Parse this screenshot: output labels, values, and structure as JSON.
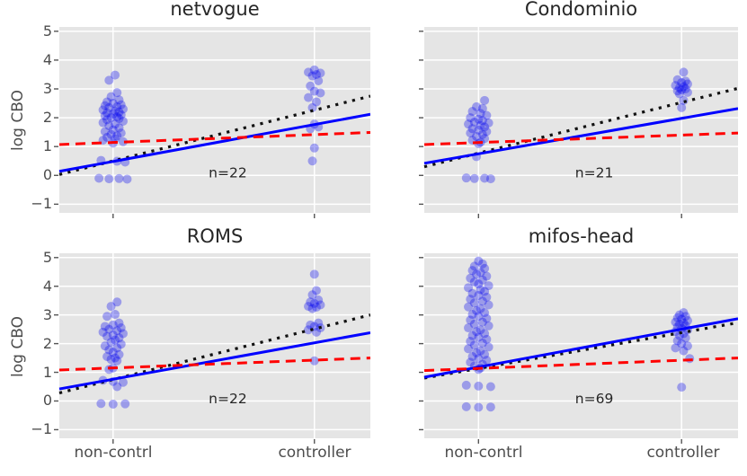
{
  "figure": {
    "ylabel": "log CBO",
    "categories": [
      "non-contrl",
      "controller"
    ],
    "ytick_values": [
      5,
      4,
      3,
      2,
      1,
      0,
      -1
    ],
    "ytick_labels": [
      "5",
      "4",
      "3",
      "2",
      "1",
      "0",
      "−1"
    ],
    "ylim": [
      -1.3,
      5.15
    ],
    "xlim": [
      -0.267,
      1.278
    ],
    "grid": "on",
    "colors": {
      "panel_bg": "#e5e5e5",
      "grid": "#ffffff",
      "scatter": "#0000ee",
      "solid_blue": "#0000ff",
      "dashed_red": "#ff0000",
      "dotted_black": "#111111",
      "tick": "#555555",
      "text_gray": "#4d4d4d",
      "title": "#262626"
    }
  },
  "chart_data": [
    {
      "type": "scatter",
      "title": "netvogue",
      "n_label": "n=22",
      "xlabel": "",
      "ylabel": "log CBO",
      "categories": [
        "non-contrl",
        "controller"
      ],
      "lines": {
        "solid_blue": {
          "y_at_xmin": 0.14,
          "y_at_xmax": 2.12
        },
        "dashed_red": {
          "y_at_xmin": 1.07,
          "y_at_xmax": 1.49
        },
        "dotted_black": {
          "y_at_xmin": 0.03,
          "y_at_xmax": 2.75
        }
      },
      "points_non_contrl": [
        [
          0.01,
          3.48
        ],
        [
          -0.02,
          3.3
        ],
        [
          0.02,
          2.87
        ],
        [
          -0.01,
          2.73
        ],
        [
          0.03,
          2.62
        ],
        [
          -0.03,
          2.55
        ],
        [
          0.0,
          2.5
        ],
        [
          0.04,
          2.45
        ],
        [
          -0.04,
          2.42
        ],
        [
          0.02,
          2.38
        ],
        [
          -0.02,
          2.35
        ],
        [
          0.05,
          2.3
        ],
        [
          -0.05,
          2.27
        ],
        [
          0.01,
          2.23
        ],
        [
          0.03,
          2.2
        ],
        [
          -0.03,
          2.17
        ],
        [
          0.0,
          2.13
        ],
        [
          0.04,
          2.1
        ],
        [
          -0.04,
          2.07
        ],
        [
          0.02,
          2.03
        ],
        [
          -0.01,
          2.0
        ],
        [
          0.03,
          1.97
        ],
        [
          -0.03,
          1.93
        ],
        [
          0.05,
          1.88
        ],
        [
          -0.05,
          1.83
        ],
        [
          0.01,
          1.78
        ],
        [
          -0.02,
          1.72
        ],
        [
          0.03,
          1.65
        ],
        [
          0.0,
          1.58
        ],
        [
          -0.04,
          1.52
        ],
        [
          0.04,
          1.47
        ],
        [
          -0.01,
          1.42
        ],
        [
          0.02,
          1.37
        ],
        [
          -0.03,
          1.32
        ],
        [
          0.01,
          1.27
        ],
        [
          -0.05,
          1.22
        ],
        [
          0.05,
          1.17
        ],
        [
          0.0,
          1.12
        ],
        [
          -0.06,
          0.52
        ],
        [
          0.02,
          0.49
        ],
        [
          0.06,
          0.46
        ],
        [
          -0.07,
          -0.1
        ],
        [
          -0.02,
          -0.12
        ],
        [
          0.03,
          -0.11
        ],
        [
          0.07,
          -0.13
        ]
      ],
      "points_controller": [
        [
          0.0,
          3.66
        ],
        [
          -0.03,
          3.58
        ],
        [
          0.03,
          3.55
        ],
        [
          0.01,
          3.5
        ],
        [
          -0.01,
          3.45
        ],
        [
          0.02,
          3.28
        ],
        [
          -0.02,
          3.1
        ],
        [
          0.0,
          2.92
        ],
        [
          0.03,
          2.86
        ],
        [
          -0.03,
          2.7
        ],
        [
          0.01,
          2.55
        ],
        [
          -0.01,
          2.35
        ],
        [
          0.0,
          1.78
        ],
        [
          0.02,
          1.68
        ],
        [
          -0.02,
          1.62
        ],
        [
          0.0,
          0.95
        ],
        [
          -0.01,
          0.5
        ]
      ]
    },
    {
      "type": "scatter",
      "title": "Condominio",
      "n_label": "n=21",
      "xlabel": "",
      "ylabel": "log CBO",
      "categories": [
        "non-contrl",
        "controller"
      ],
      "lines": {
        "solid_blue": {
          "y_at_xmin": 0.42,
          "y_at_xmax": 2.32
        },
        "dashed_red": {
          "y_at_xmin": 1.07,
          "y_at_xmax": 1.47
        },
        "dotted_black": {
          "y_at_xmin": 0.3,
          "y_at_xmax": 3.02
        }
      },
      "points_non_contrl": [
        [
          0.03,
          2.6
        ],
        [
          -0.01,
          2.38
        ],
        [
          0.02,
          2.32
        ],
        [
          -0.03,
          2.22
        ],
        [
          0.01,
          2.15
        ],
        [
          0.04,
          2.08
        ],
        [
          -0.04,
          2.0
        ],
        [
          0.0,
          1.95
        ],
        [
          0.02,
          1.9
        ],
        [
          -0.02,
          1.85
        ],
        [
          0.05,
          1.82
        ],
        [
          -0.05,
          1.78
        ],
        [
          0.01,
          1.73
        ],
        [
          0.03,
          1.68
        ],
        [
          -0.03,
          1.62
        ],
        [
          0.0,
          1.57
        ],
        [
          0.04,
          1.52
        ],
        [
          -0.04,
          1.47
        ],
        [
          0.02,
          1.42
        ],
        [
          -0.01,
          1.35
        ],
        [
          0.03,
          1.28
        ],
        [
          -0.03,
          1.22
        ],
        [
          0.01,
          1.15
        ],
        [
          0.0,
          1.1
        ],
        [
          -0.01,
          0.65
        ],
        [
          -0.06,
          -0.09
        ],
        [
          -0.02,
          -0.11
        ],
        [
          0.03,
          -0.1
        ],
        [
          0.06,
          -0.12
        ]
      ],
      "points_controller": [
        [
          0.01,
          3.58
        ],
        [
          -0.02,
          3.32
        ],
        [
          0.02,
          3.27
        ],
        [
          0.0,
          3.22
        ],
        [
          0.03,
          3.17
        ],
        [
          -0.03,
          3.12
        ],
        [
          0.01,
          3.08
        ],
        [
          -0.01,
          3.04
        ],
        [
          0.02,
          3.0
        ],
        [
          0.0,
          2.97
        ],
        [
          -0.02,
          2.93
        ],
        [
          0.03,
          2.88
        ],
        [
          -0.01,
          2.83
        ],
        [
          0.01,
          2.6
        ],
        [
          0.0,
          2.35
        ]
      ]
    },
    {
      "type": "scatter",
      "title": "ROMS",
      "n_label": "n=22",
      "xlabel": "",
      "ylabel": "log CBO",
      "categories": [
        "non-contrl",
        "controller"
      ],
      "lines": {
        "solid_blue": {
          "y_at_xmin": 0.42,
          "y_at_xmax": 2.38
        },
        "dashed_red": {
          "y_at_xmin": 1.08,
          "y_at_xmax": 1.5
        },
        "dotted_black": {
          "y_at_xmin": 0.28,
          "y_at_xmax": 3.0
        }
      },
      "points_non_contrl": [
        [
          0.02,
          3.45
        ],
        [
          -0.01,
          3.3
        ],
        [
          0.01,
          3.02
        ],
        [
          -0.03,
          2.95
        ],
        [
          0.03,
          2.72
        ],
        [
          0.0,
          2.65
        ],
        [
          -0.04,
          2.6
        ],
        [
          0.04,
          2.55
        ],
        [
          -0.02,
          2.5
        ],
        [
          0.02,
          2.45
        ],
        [
          -0.05,
          2.4
        ],
        [
          0.05,
          2.35
        ],
        [
          0.0,
          2.3
        ],
        [
          -0.03,
          2.25
        ],
        [
          0.03,
          2.2
        ],
        [
          0.01,
          2.13
        ],
        [
          -0.01,
          2.05
        ],
        [
          0.04,
          1.98
        ],
        [
          -0.04,
          1.92
        ],
        [
          0.02,
          1.85
        ],
        [
          -0.02,
          1.78
        ],
        [
          0.0,
          1.7
        ],
        [
          0.03,
          1.62
        ],
        [
          -0.03,
          1.55
        ],
        [
          0.01,
          1.5
        ],
        [
          -0.01,
          1.45
        ],
        [
          0.02,
          1.4
        ],
        [
          0.0,
          1.15
        ],
        [
          -0.02,
          1.1
        ],
        [
          -0.05,
          0.72
        ],
        [
          0.0,
          0.68
        ],
        [
          0.05,
          0.65
        ],
        [
          0.02,
          0.5
        ],
        [
          -0.06,
          -0.09
        ],
        [
          0.0,
          -0.11
        ],
        [
          0.06,
          -0.1
        ]
      ],
      "points_controller": [
        [
          0.0,
          4.42
        ],
        [
          0.01,
          3.85
        ],
        [
          -0.01,
          3.7
        ],
        [
          0.02,
          3.52
        ],
        [
          -0.02,
          3.45
        ],
        [
          0.0,
          3.4
        ],
        [
          0.03,
          3.35
        ],
        [
          -0.03,
          3.3
        ],
        [
          0.01,
          3.27
        ],
        [
          -0.01,
          3.22
        ],
        [
          0.02,
          2.72
        ],
        [
          -0.02,
          2.65
        ],
        [
          0.0,
          2.6
        ],
        [
          0.03,
          2.55
        ],
        [
          -0.03,
          2.48
        ],
        [
          0.01,
          2.4
        ],
        [
          0.0,
          1.4
        ]
      ]
    },
    {
      "type": "scatter",
      "title": "mifos-head",
      "n_label": "n=69",
      "xlabel": "",
      "ylabel": "log CBO",
      "categories": [
        "non-contrl",
        "controller"
      ],
      "lines": {
        "solid_blue": {
          "y_at_xmin": 0.83,
          "y_at_xmax": 2.87
        },
        "dashed_red": {
          "y_at_xmin": 1.06,
          "y_at_xmax": 1.5
        },
        "dotted_black": {
          "y_at_xmin": 0.8,
          "y_at_xmax": 2.73
        }
      },
      "points_non_contrl": [
        [
          0.0,
          4.88
        ],
        [
          0.02,
          4.78
        ],
        [
          -0.02,
          4.7
        ],
        [
          0.03,
          4.62
        ],
        [
          -0.03,
          4.55
        ],
        [
          0.01,
          4.48
        ],
        [
          -0.01,
          4.42
        ],
        [
          0.04,
          4.35
        ],
        [
          -0.04,
          4.28
        ],
        [
          0.02,
          4.22
        ],
        [
          -0.02,
          4.15
        ],
        [
          0.0,
          4.08
        ],
        [
          0.05,
          4.02
        ],
        [
          -0.05,
          3.95
        ],
        [
          0.01,
          3.88
        ],
        [
          0.03,
          3.82
        ],
        [
          -0.03,
          3.75
        ],
        [
          0.0,
          3.68
        ],
        [
          0.04,
          3.62
        ],
        [
          -0.04,
          3.55
        ],
        [
          0.02,
          3.48
        ],
        [
          -0.02,
          3.42
        ],
        [
          0.05,
          3.35
        ],
        [
          -0.05,
          3.28
        ],
        [
          0.01,
          3.22
        ],
        [
          -0.01,
          3.15
        ],
        [
          0.03,
          3.08
        ],
        [
          -0.03,
          3.02
        ],
        [
          0.0,
          2.95
        ],
        [
          0.04,
          2.88
        ],
        [
          -0.04,
          2.82
        ],
        [
          0.02,
          2.75
        ],
        [
          -0.02,
          2.68
        ],
        [
          0.05,
          2.62
        ],
        [
          -0.05,
          2.55
        ],
        [
          0.01,
          2.48
        ],
        [
          -0.01,
          2.42
        ],
        [
          0.03,
          2.35
        ],
        [
          -0.03,
          2.28
        ],
        [
          0.0,
          2.22
        ],
        [
          0.04,
          2.15
        ],
        [
          -0.04,
          2.08
        ],
        [
          0.02,
          2.02
        ],
        [
          -0.02,
          1.95
        ],
        [
          0.05,
          1.88
        ],
        [
          -0.05,
          1.82
        ],
        [
          0.01,
          1.75
        ],
        [
          -0.01,
          1.68
        ],
        [
          0.03,
          1.62
        ],
        [
          -0.03,
          1.55
        ],
        [
          0.0,
          1.48
        ],
        [
          0.04,
          1.42
        ],
        [
          -0.04,
          1.35
        ],
        [
          0.02,
          1.28
        ],
        [
          -0.02,
          1.22
        ],
        [
          0.01,
          1.15
        ],
        [
          0.0,
          1.1
        ],
        [
          -0.06,
          0.55
        ],
        [
          0.0,
          0.52
        ],
        [
          0.06,
          0.5
        ],
        [
          -0.06,
          -0.2
        ],
        [
          0.0,
          -0.22
        ],
        [
          0.06,
          -0.21
        ]
      ],
      "points_controller": [
        [
          0.01,
          3.08
        ],
        [
          -0.01,
          3.0
        ],
        [
          0.02,
          2.95
        ],
        [
          -0.02,
          2.9
        ],
        [
          0.0,
          2.85
        ],
        [
          0.03,
          2.8
        ],
        [
          -0.03,
          2.75
        ],
        [
          0.01,
          2.72
        ],
        [
          -0.01,
          2.68
        ],
        [
          0.02,
          2.63
        ],
        [
          -0.02,
          2.58
        ],
        [
          0.0,
          2.53
        ],
        [
          0.03,
          2.48
        ],
        [
          -0.03,
          2.42
        ],
        [
          0.01,
          2.35
        ],
        [
          -0.01,
          2.28
        ],
        [
          0.02,
          2.2
        ],
        [
          -0.02,
          2.1
        ],
        [
          0.0,
          2.0
        ],
        [
          0.03,
          1.92
        ],
        [
          -0.03,
          1.85
        ],
        [
          0.01,
          1.75
        ],
        [
          0.04,
          1.48
        ],
        [
          0.0,
          0.48
        ]
      ]
    }
  ]
}
